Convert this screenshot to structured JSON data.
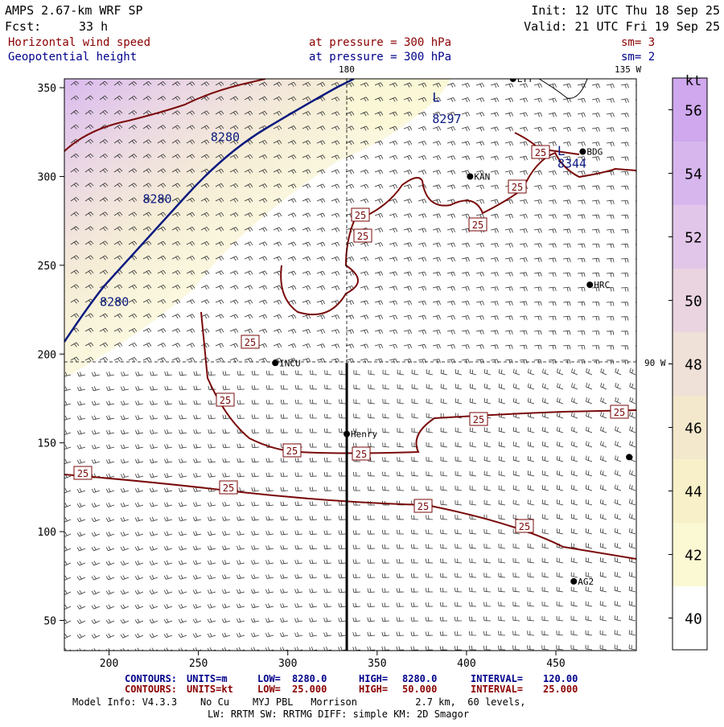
{
  "header": {
    "model": "AMPS 2.67-km WRF SP",
    "fcst_prefix": "Fcst:",
    "fcst_value": "33 h",
    "init": "Init: 12 UTC Thu 18 Sep 25",
    "valid": "Valid: 21 UTC Fri 19 Sep 25",
    "field1": "Horizontal wind speed",
    "field1_level": "at pressure =  300 hPa",
    "field1_sm": "sm= 3",
    "field2": "Geopotential height",
    "field2_level": "at pressure =  300 hPa",
    "field2_sm": "sm= 2"
  },
  "map_labels": {
    "lon_180": "180",
    "lon_135w": "135 W",
    "lon_90w": "90 W"
  },
  "stations": [
    {
      "id": "INCU",
      "x": 293,
      "y": 195
    },
    {
      "id": "Henry",
      "x": 333,
      "y": 155
    },
    {
      "id": "KAN",
      "x": 402,
      "y": 300
    },
    {
      "id": "BDG",
      "x": 465,
      "y": 314
    },
    {
      "id": "HRC",
      "x": 469,
      "y": 239
    },
    {
      "id": "AG2",
      "x": 460,
      "y": 72
    },
    {
      "id": "LTY",
      "x": 426,
      "y": 355
    },
    {
      "id": "",
      "x": 491,
      "y": 142
    }
  ],
  "chart_data": {
    "type": "heatmap",
    "xlim": [
      175,
      495
    ],
    "ylim": [
      33,
      355
    ],
    "x_ticks": [
      200,
      250,
      300,
      350,
      400,
      450
    ],
    "y_ticks": [
      50,
      100,
      150,
      200,
      250,
      300,
      350
    ],
    "colorbar": {
      "unit": "kt",
      "ticks": [
        40,
        42,
        44,
        46,
        48,
        50,
        52,
        54,
        56
      ],
      "range": [
        39,
        57
      ],
      "colors": [
        "#ffffff",
        "#fbf8d4",
        "#f7f0c8",
        "#f3e8cc",
        "#efe0d8",
        "#e9d4e0",
        "#e2c6ea",
        "#d7b6ee",
        "#cfa8ee"
      ]
    },
    "height_contours": {
      "labels": [
        {
          "text": "8280",
          "x": 203,
          "y": 227
        },
        {
          "text": "8280",
          "x": 227,
          "y": 285
        },
        {
          "text": "8280",
          "x": 265,
          "y": 320
        },
        {
          "text": "8297",
          "x": 389,
          "y": 330
        },
        {
          "text": "8344",
          "x": 459,
          "y": 305
        }
      ],
      "lows": [
        {
          "text": "L",
          "x": 383,
          "y": 342
        },
        {
          "text": "L",
          "x": 453,
          "y": 312
        }
      ]
    },
    "speed_contour_labels": [
      "25",
      "25",
      "25",
      "25",
      "25",
      "25",
      "25",
      "25",
      "25",
      "25",
      "25",
      "25",
      "25",
      "25"
    ],
    "cross_section": {
      "x": 333,
      "y_from": 33,
      "y_to": 195
    }
  },
  "footer": {
    "c1_title": "CONTOURS:",
    "c1_units": "UNITS=m",
    "c1_low_label": "LOW=",
    "c1_low": "8280.0",
    "c1_high_label": "HIGH=",
    "c1_high": "8280.0",
    "c1_int_label": "INTERVAL=",
    "c1_int": "120.00",
    "c2_title": "CONTOURS:",
    "c2_units": "UNITS=kt",
    "c2_low_label": "LOW=",
    "c2_low": "25.000",
    "c2_high_label": "HIGH=",
    "c2_high": "50.000",
    "c2_int_label": "INTERVAL=",
    "c2_int": "25.000",
    "model_info": "Model Info: V4.3.3    No Cu    MYJ PBL   Morrison          2.7 km,  60 levels,",
    "model_info2": "LW: RRTM SW: RRTMG   DIFF: simple KM: 2D Smagor"
  },
  "colors": {
    "header_text": "#000000",
    "field_speed": "#8b0000",
    "field_height": "#00008b",
    "speed_contour": "#7a0a0a",
    "height_contour": "#0a1a80"
  }
}
